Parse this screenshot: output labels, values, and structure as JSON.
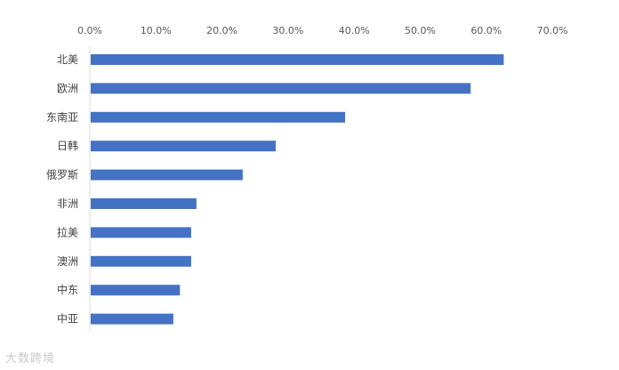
{
  "chart_data": {
    "type": "bar",
    "orientation": "horizontal",
    "categories": [
      "北美",
      "欧洲",
      "东南亚",
      "日韩",
      "俄罗斯",
      "非洲",
      "拉美",
      "澳洲",
      "中东",
      "中亚"
    ],
    "values": [
      62.5,
      57.5,
      38.5,
      28.0,
      23.0,
      16.0,
      15.2,
      15.2,
      13.5,
      12.5
    ],
    "xticks": [
      "0.0%",
      "10.0%",
      "20.0%",
      "30.0%",
      "40.0%",
      "50.0%",
      "60.0%",
      "70.0%"
    ],
    "xlim": [
      0,
      70
    ],
    "xaxis_position": "top",
    "bar_color": "#4472C4",
    "grid": false,
    "title": "",
    "xlabel": "",
    "ylabel": ""
  },
  "watermark": "大数跨境"
}
